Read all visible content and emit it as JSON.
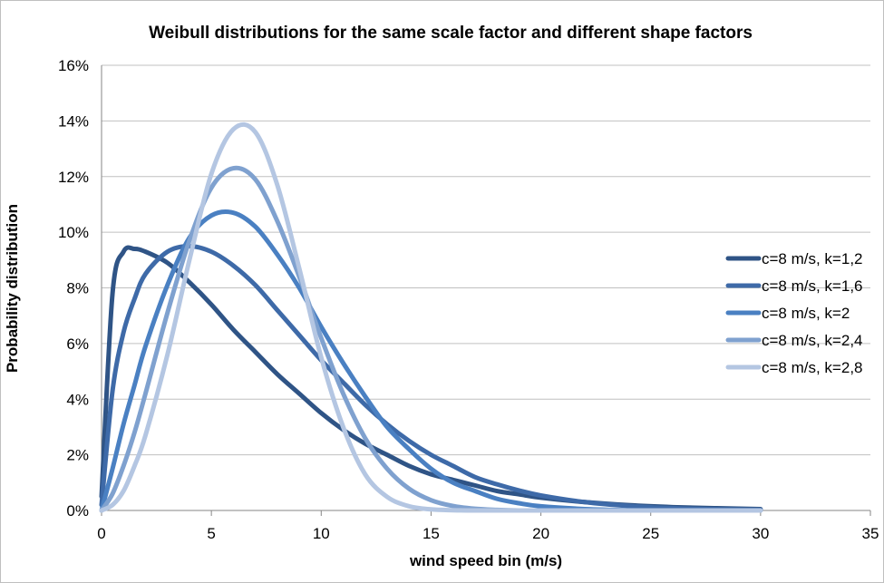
{
  "chart_data": {
    "type": "line",
    "title": "Weibull distributions for the same scale factor and different shape factors",
    "xlabel": "wind speed bin (m/s)",
    "ylabel": "Probability distribution",
    "xlim": [
      0,
      35
    ],
    "ylim": [
      0,
      0.16
    ],
    "x_ticks": [
      0,
      5,
      10,
      15,
      20,
      25,
      30,
      35
    ],
    "y_ticks": [
      0,
      0.02,
      0.04,
      0.06,
      0.08,
      0.1,
      0.12,
      0.14,
      0.16
    ],
    "y_tick_labels": [
      "0%",
      "2%",
      "4%",
      "6%",
      "8%",
      "10%",
      "12%",
      "14%",
      "16%"
    ],
    "grid": "horizontal",
    "legend_position": "right",
    "x": [
      0,
      0.5,
      1,
      1.5,
      2,
      3,
      4,
      5,
      6,
      7,
      8,
      9,
      10,
      11,
      12,
      13,
      14,
      15,
      16,
      17,
      18,
      19,
      20,
      22,
      24,
      26,
      28,
      30
    ],
    "series": [
      {
        "name": "c=8 m/s, k=1,2",
        "color": "#2f5486",
        "values": [
          0.005,
          0.078,
          0.093,
          0.094,
          0.093,
          0.089,
          0.082,
          0.074,
          0.065,
          0.057,
          0.049,
          0.042,
          0.035,
          0.029,
          0.024,
          0.02,
          0.016,
          0.013,
          0.011,
          0.009,
          0.007,
          0.0058,
          0.0046,
          0.003,
          0.0019,
          0.0012,
          0.0008,
          0.0005
        ]
      },
      {
        "name": "c=8 m/s, k=1,6",
        "color": "#3e6aa8",
        "values": [
          0.002,
          0.043,
          0.064,
          0.076,
          0.085,
          0.093,
          0.095,
          0.093,
          0.088,
          0.081,
          0.072,
          0.063,
          0.054,
          0.046,
          0.038,
          0.031,
          0.025,
          0.02,
          0.016,
          0.012,
          0.0094,
          0.0072,
          0.0054,
          0.003,
          0.0016,
          0.0008,
          0.0004,
          0.0002
        ]
      },
      {
        "name": "c=8 m/s, k=2",
        "color": "#4a80c2",
        "values": [
          0.0,
          0.015,
          0.031,
          0.045,
          0.059,
          0.081,
          0.098,
          0.106,
          0.107,
          0.102,
          0.092,
          0.08,
          0.066,
          0.053,
          0.041,
          0.03,
          0.022,
          0.015,
          0.01,
          0.007,
          0.0042,
          0.0026,
          0.0015,
          0.0005,
          0.0001,
          0.0,
          0.0,
          0.0
        ]
      },
      {
        "name": "c=8 m/s, k=2,4",
        "color": "#7fa1cf",
        "values": [
          0.0,
          0.006,
          0.016,
          0.028,
          0.042,
          0.071,
          0.097,
          0.116,
          0.123,
          0.119,
          0.104,
          0.084,
          0.062,
          0.042,
          0.026,
          0.015,
          0.0078,
          0.0037,
          0.0016,
          0.0006,
          0.0002,
          0.0,
          0.0,
          0.0,
          0.0,
          0.0,
          0.0,
          0.0
        ]
      },
      {
        "name": "c=8 m/s, k=2,8",
        "color": "#b4c6e2",
        "values": [
          0.0,
          0.002,
          0.007,
          0.016,
          0.027,
          0.056,
          0.09,
          0.121,
          0.137,
          0.136,
          0.117,
          0.087,
          0.055,
          0.03,
          0.013,
          0.0049,
          0.0015,
          0.0004,
          0.0001,
          0.0,
          0.0,
          0.0,
          0.0,
          0.0,
          0.0,
          0.0,
          0.0,
          0.0
        ]
      }
    ]
  }
}
